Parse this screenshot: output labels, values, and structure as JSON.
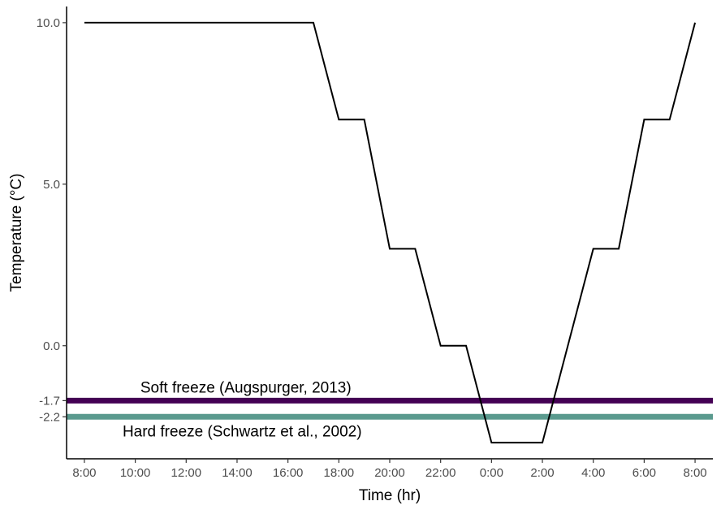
{
  "chart_data": {
    "type": "line",
    "xlabel": "Time (hr)",
    "ylabel": "Temperature (°C)",
    "xlim": [
      -0.7,
      24.7
    ],
    "ylim": [
      -3.5,
      10.5
    ],
    "grid": false,
    "legend": "none",
    "x_ticks": [
      {
        "x": 0,
        "label": "8:00"
      },
      {
        "x": 2,
        "label": "10:00"
      },
      {
        "x": 4,
        "label": "12:00"
      },
      {
        "x": 6,
        "label": "14:00"
      },
      {
        "x": 8,
        "label": "16:00"
      },
      {
        "x": 10,
        "label": "18:00"
      },
      {
        "x": 12,
        "label": "20:00"
      },
      {
        "x": 14,
        "label": "22:00"
      },
      {
        "x": 16,
        "label": "0:00"
      },
      {
        "x": 18,
        "label": "2:00"
      },
      {
        "x": 20,
        "label": "4:00"
      },
      {
        "x": 22,
        "label": "6:00"
      },
      {
        "x": 24,
        "label": "8:00"
      }
    ],
    "y_ticks": [
      {
        "y": 10.0,
        "label": "10.0"
      },
      {
        "y": 5.0,
        "label": "5.0"
      },
      {
        "y": 0.0,
        "label": "0.0"
      },
      {
        "y": -1.7,
        "label": "-1.7"
      },
      {
        "y": -2.2,
        "label": "-2.2"
      }
    ],
    "series": [
      {
        "color": "#000000",
        "points": [
          [
            0,
            10
          ],
          [
            9,
            10
          ],
          [
            10,
            7
          ],
          [
            11,
            7
          ],
          [
            12,
            3
          ],
          [
            13,
            3
          ],
          [
            14,
            0
          ],
          [
            15,
            0
          ],
          [
            16,
            -3
          ],
          [
            18,
            -3
          ],
          [
            19,
            0
          ],
          [
            20,
            3
          ],
          [
            21,
            3
          ],
          [
            22,
            7
          ],
          [
            23,
            7
          ],
          [
            24,
            10
          ]
        ]
      }
    ],
    "hlines": [
      {
        "y": -1.7,
        "color": "#440154",
        "label": "Soft freeze (Augspurger, 2013)"
      },
      {
        "y": -2.2,
        "color": "#5a9a8e",
        "label": "Hard freeze (Schwartz et al., 2002)"
      }
    ]
  }
}
